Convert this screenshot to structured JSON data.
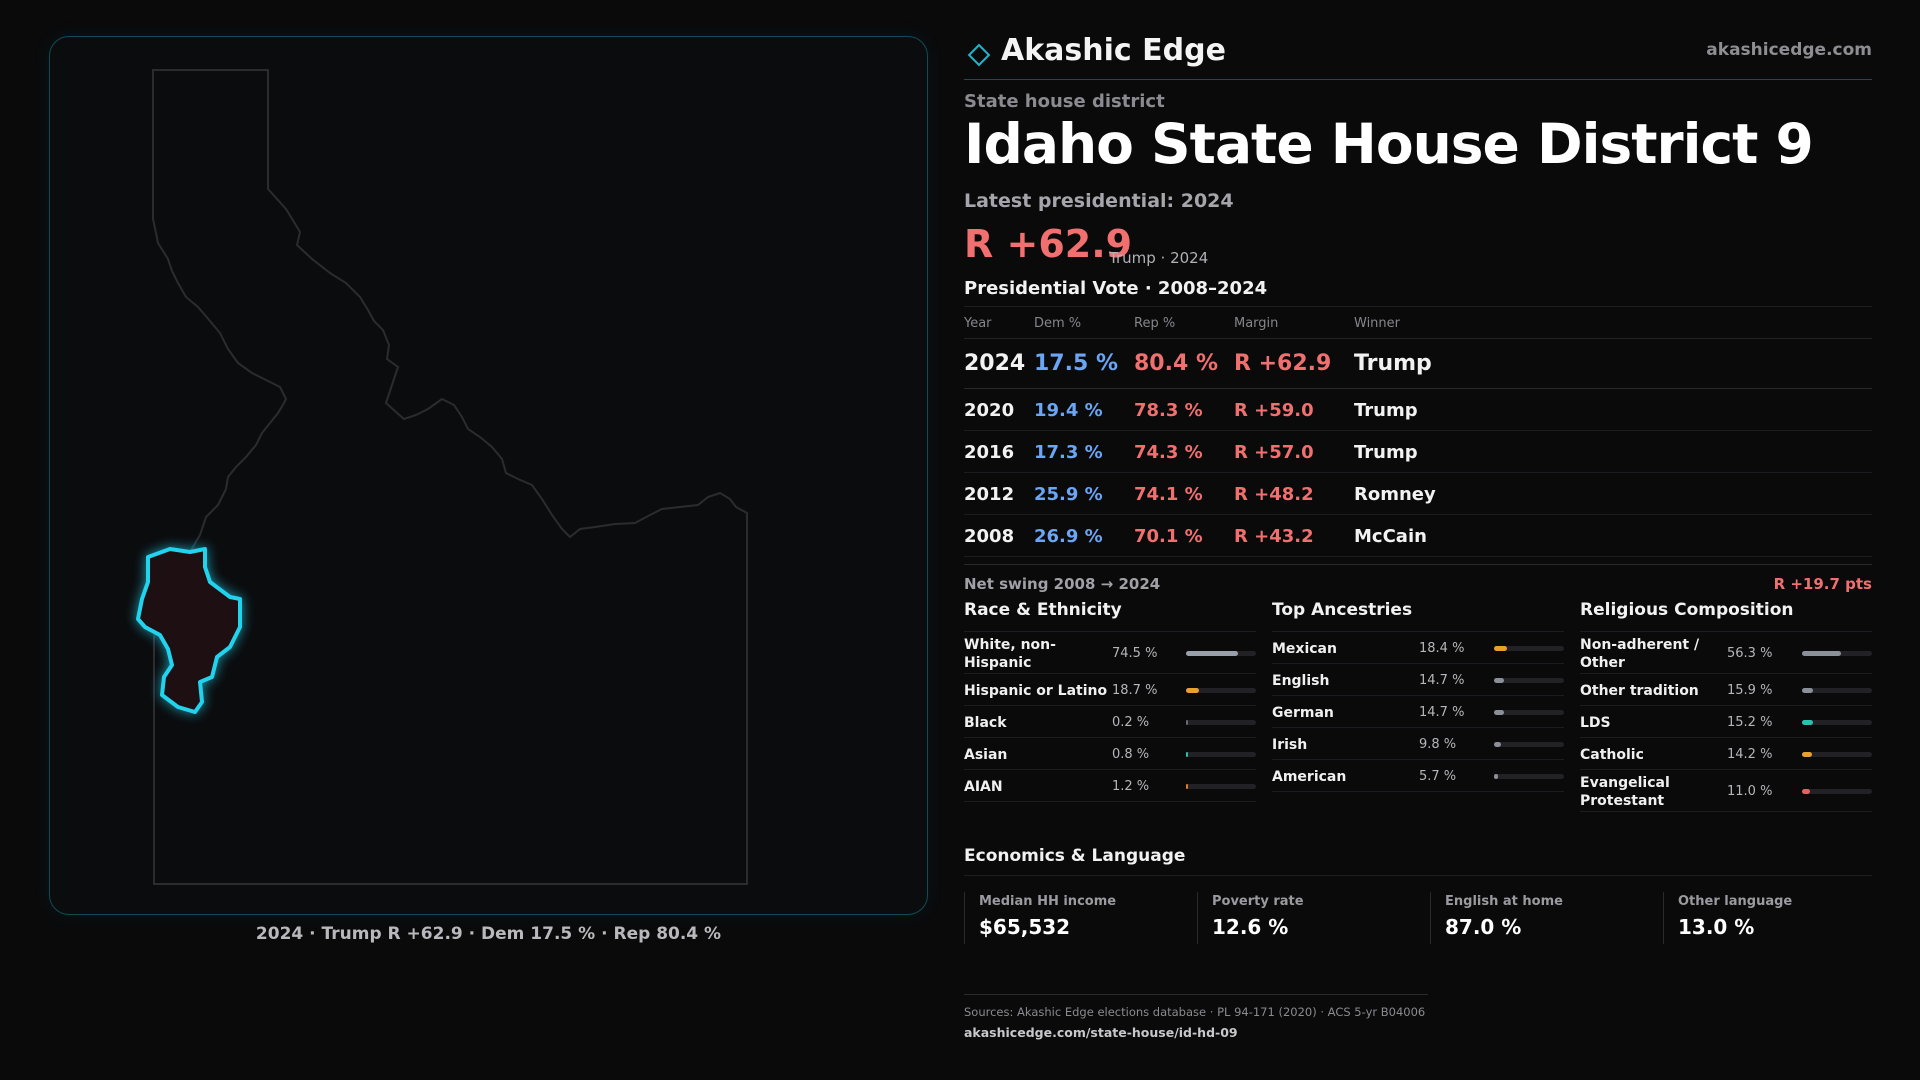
{
  "map": {
    "caption": "2024 · Trump R +62.9 · Dem 17.5 % · Rep 80.4 %",
    "state_outline_color": "#2c2c30",
    "district_stroke_color": "#22d3ee",
    "district_fill_color": "#1e0f12"
  },
  "brand": {
    "name": "Akashic Edge",
    "url": "akashicedge.com",
    "logo_icon": "diamond-icon",
    "accent_color": "#22d3ee"
  },
  "header": {
    "kicker": "State house district",
    "title": "Idaho State House District 9",
    "latest_label": "Latest presidential: 2024",
    "margin": "R +62.9",
    "margin_note": "Trump · 2024"
  },
  "vote_table": {
    "section_title": "Presidential Vote · 2008–2024",
    "headers": {
      "year": "Year",
      "dem": "Dem %",
      "rep": "Rep %",
      "margin": "Margin",
      "winner": "Winner"
    },
    "rows": [
      {
        "year": "2024",
        "dem": "17.5 %",
        "rep": "80.4 %",
        "margin": "R +62.9",
        "winner": "Trump"
      },
      {
        "year": "2020",
        "dem": "19.4 %",
        "rep": "78.3 %",
        "margin": "R +59.0",
        "winner": "Trump"
      },
      {
        "year": "2016",
        "dem": "17.3 %",
        "rep": "74.3 %",
        "margin": "R +57.0",
        "winner": "Trump"
      },
      {
        "year": "2012",
        "dem": "25.9 %",
        "rep": "74.1 %",
        "margin": "R +48.2",
        "winner": "Romney"
      },
      {
        "year": "2008",
        "dem": "26.9 %",
        "rep": "70.1 %",
        "margin": "R +43.2",
        "winner": "McCain"
      }
    ],
    "dem_color": "#6aa6f5",
    "rep_color": "#f07070"
  },
  "swing": {
    "label": "Net swing 2008 → 2024",
    "value": "R +19.7 pts"
  },
  "race": {
    "title": "Race & Ethnicity",
    "items": [
      {
        "label": "White, non-Hispanic",
        "pct": "74.5 %",
        "value": 74.5,
        "color": "#9aa0aa"
      },
      {
        "label": "Hispanic or Latino",
        "pct": "18.7 %",
        "value": 18.7,
        "color": "#e8a030"
      },
      {
        "label": "Black",
        "pct": "0.2 %",
        "value": 0.2,
        "color": "#6a6a70"
      },
      {
        "label": "Asian",
        "pct": "0.8 %",
        "value": 0.8,
        "color": "#2cc0a8"
      },
      {
        "label": "AIAN",
        "pct": "1.2 %",
        "value": 1.2,
        "color": "#e07a30"
      }
    ]
  },
  "ancestry": {
    "title": "Top Ancestries",
    "items": [
      {
        "label": "Mexican",
        "pct": "18.4 %",
        "value": 18.4,
        "color": "#e8a030"
      },
      {
        "label": "English",
        "pct": "14.7 %",
        "value": 14.7,
        "color": "#8a8f98"
      },
      {
        "label": "German",
        "pct": "14.7 %",
        "value": 14.7,
        "color": "#8a8f98"
      },
      {
        "label": "Irish",
        "pct": "9.8 %",
        "value": 9.8,
        "color": "#8a8f98"
      },
      {
        "label": "American",
        "pct": "5.7 %",
        "value": 5.7,
        "color": "#8a8f98"
      }
    ]
  },
  "religion": {
    "title": "Religious Composition",
    "items": [
      {
        "label": "Non-adherent / Other",
        "pct": "56.3 %",
        "value": 56.3,
        "color": "#8a8f98"
      },
      {
        "label": "Other tradition",
        "pct": "15.9 %",
        "value": 15.9,
        "color": "#8a8f98"
      },
      {
        "label": "LDS",
        "pct": "15.2 %",
        "value": 15.2,
        "color": "#2cc0b0"
      },
      {
        "label": "Catholic",
        "pct": "14.2 %",
        "value": 14.2,
        "color": "#e8a030"
      },
      {
        "label": "Evangelical Protestant",
        "pct": "11.0 %",
        "value": 11.0,
        "color": "#e86060"
      }
    ]
  },
  "economics": {
    "title": "Economics & Language",
    "items": [
      {
        "label": "Median HH income",
        "value": "$65,532"
      },
      {
        "label": "Poverty rate",
        "value": "12.6 %"
      },
      {
        "label": "English at home",
        "value": "87.0 %"
      },
      {
        "label": "Other language",
        "value": "13.0 %"
      }
    ]
  },
  "footer": {
    "sources": "Sources: Akashic Edge elections database · PL 94-171 (2020) · ACS 5-yr B04006",
    "url": "akashicedge.com/state-house/id-hd-09"
  }
}
